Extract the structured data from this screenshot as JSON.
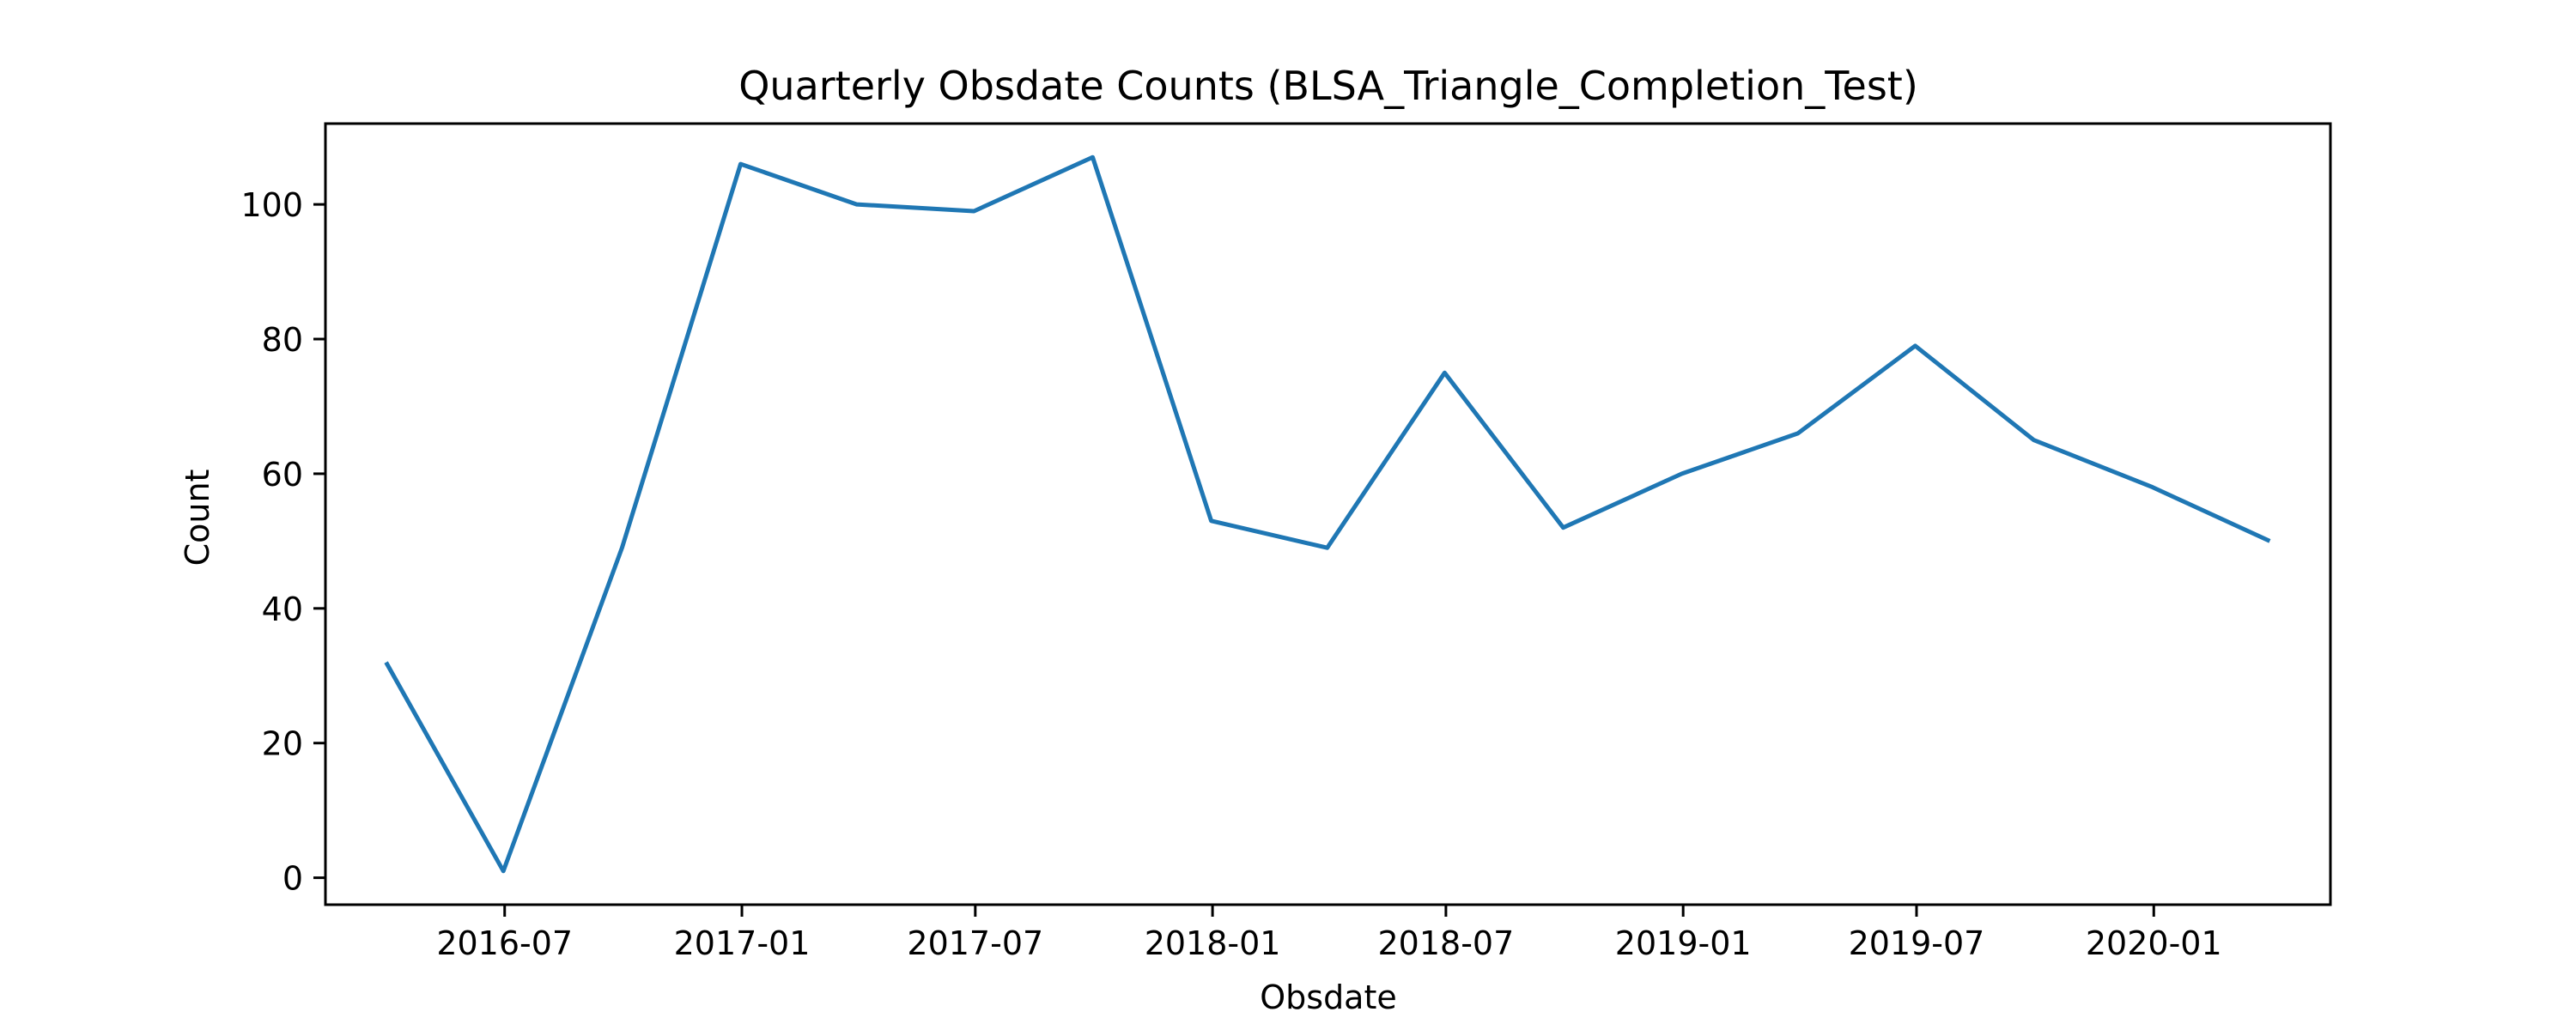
{
  "chart_data": {
    "type": "line",
    "title": "Quarterly Obsdate Counts (BLSA_Triangle_Completion_Test)",
    "xlabel": "Obsdate",
    "ylabel": "Count",
    "x": [
      "2016-03-31",
      "2016-06-30",
      "2016-09-30",
      "2016-12-31",
      "2017-03-31",
      "2017-06-30",
      "2017-09-30",
      "2017-12-31",
      "2018-03-31",
      "2018-06-30",
      "2018-09-30",
      "2018-12-31",
      "2019-03-31",
      "2019-06-30",
      "2019-09-30",
      "2019-12-31",
      "2020-03-31"
    ],
    "series": [
      {
        "values": [
          32,
          1,
          49,
          106,
          100,
          99,
          107,
          53,
          49,
          75,
          52,
          60,
          66,
          79,
          65,
          58,
          50
        ]
      }
    ],
    "x_ticks": [
      "2016-07",
      "2017-01",
      "2017-07",
      "2018-01",
      "2018-07",
      "2019-01",
      "2019-07",
      "2020-01"
    ],
    "y_ticks": [
      0,
      20,
      40,
      60,
      80,
      100
    ],
    "xlim": [
      "2016-02-13",
      "2020-05-17"
    ],
    "ylim": [
      -4,
      112
    ],
    "grid": false,
    "legend": false,
    "line_color": "#1f77b4"
  }
}
